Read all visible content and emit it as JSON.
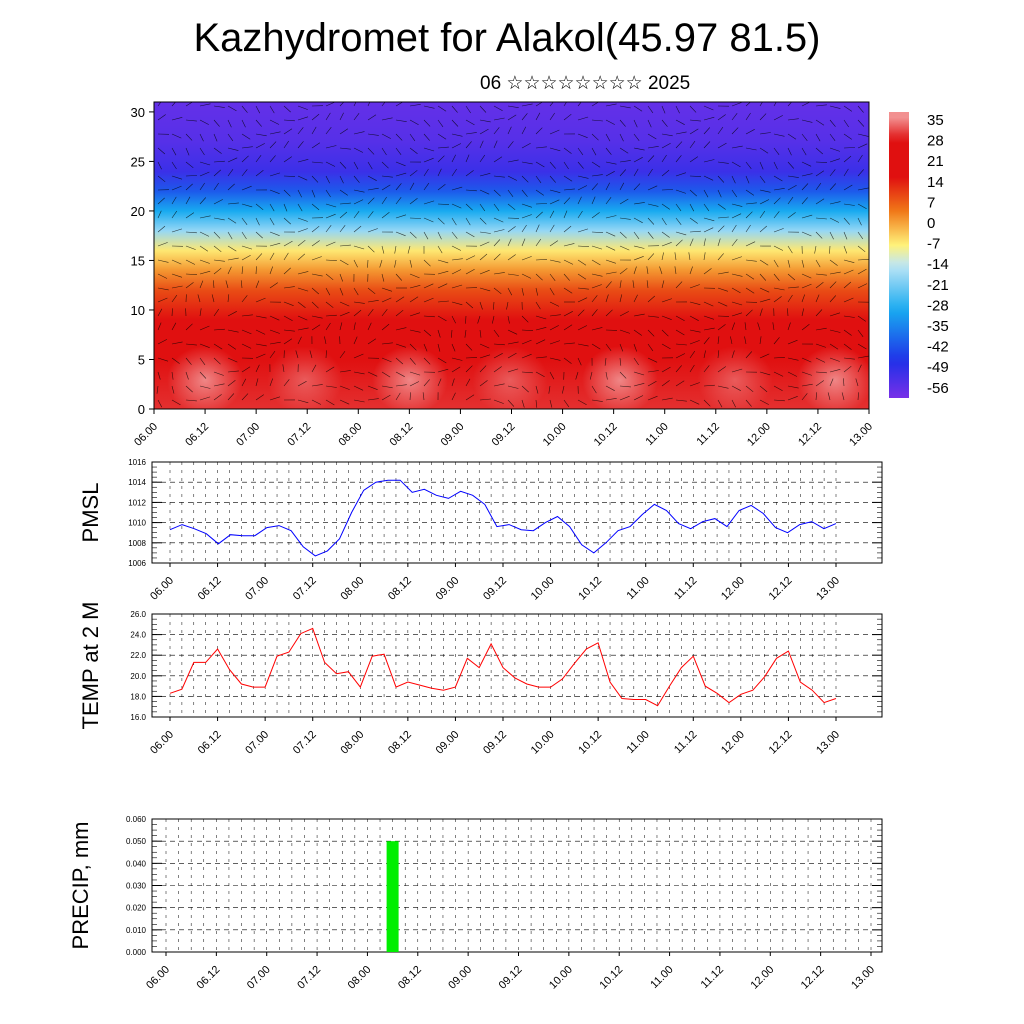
{
  "title": "Kazhydromet for Alakol(45.97 81.5)",
  "subtitle": "06 ☆☆☆☆☆☆☆☆ 2025",
  "chart_data": [
    {
      "type": "heatmap",
      "title": "",
      "xlabel": "",
      "ylabel": "",
      "description_fields_only": true,
      "x_tick_labels": [
        "06.00",
        "06.12",
        "07.00",
        "07.12",
        "08.00",
        "08.12",
        "09.00",
        "09.12",
        "10.00",
        "10.12",
        "11.00",
        "11.12",
        "12.00",
        "12.12",
        "13.00"
      ],
      "y_tick_labels": [
        "0",
        "5",
        "10",
        "15",
        "20",
        "25",
        "30"
      ],
      "ylim": [
        0,
        31
      ],
      "colorbar_labels": [
        "35",
        "28",
        "21",
        "14",
        "7",
        "0",
        "-7",
        "-14",
        "-21",
        "-28",
        "-35",
        "-42",
        "-49",
        "-56"
      ],
      "colorbar_range": [
        -63,
        38
      ],
      "colors": {
        "warm_max": "#f6b0b0",
        "warm": "#e01010",
        "orange": "#f07818",
        "yellow": "#fff27a",
        "cold_light": "#bfe6f6",
        "cyan": "#18aaf0",
        "blue": "#2030e8",
        "violet": "#7830e8"
      },
      "temperature_profile": [
        {
          "y": 0,
          "t": 30
        },
        {
          "y": 5,
          "t": 24
        },
        {
          "y": 9,
          "t": 18
        },
        {
          "y": 12,
          "t": 8
        },
        {
          "y": 14,
          "t": 0
        },
        {
          "y": 16,
          "t": -8
        },
        {
          "y": 18,
          "t": -20
        },
        {
          "y": 20,
          "t": -32
        },
        {
          "y": 22,
          "t": -44
        },
        {
          "y": 24,
          "t": -54
        },
        {
          "y": 27,
          "t": -58
        },
        {
          "y": 31,
          "t": -60
        }
      ],
      "grid": false,
      "wind_barbs": true
    },
    {
      "type": "line",
      "ylabel": "PMSL",
      "ylim": [
        1006,
        1016
      ],
      "y_ticks": [
        "1006",
        "1008",
        "1010",
        "1012",
        "1014",
        "1016"
      ],
      "x_tick_labels": [
        "06.00",
        "06.12",
        "07.00",
        "07.12",
        "08.00",
        "08.12",
        "09.00",
        "09.12",
        "10.00",
        "10.12",
        "11.00",
        "11.12",
        "12.00",
        "12.12",
        "13.00"
      ],
      "grid": true,
      "color": "#0000ff",
      "values": [
        1009.3,
        1009.8,
        1009.4,
        1008.9,
        1007.9,
        1008.8,
        1008.7,
        1008.7,
        1009.5,
        1009.7,
        1009.2,
        1007.6,
        1006.7,
        1007.2,
        1008.4,
        1011.0,
        1013.2,
        1014.0,
        1014.2,
        1014.2,
        1013.0,
        1013.3,
        1012.7,
        1012.4,
        1013.1,
        1012.7,
        1011.8,
        1009.6,
        1009.8,
        1009.3,
        1009.2,
        1010.0,
        1010.6,
        1009.6,
        1007.8,
        1007.0,
        1008.0,
        1009.2,
        1009.6,
        1010.8,
        1011.8,
        1011.2,
        1009.9,
        1009.4,
        1010.1,
        1010.4,
        1009.6,
        1011.2,
        1011.7,
        1010.9,
        1009.5,
        1009.0,
        1009.8,
        1010.1,
        1009.4,
        1009.9
      ]
    },
    {
      "type": "line",
      "ylabel": "TEMP at 2 M",
      "ylim": [
        16,
        26
      ],
      "y_ticks": [
        "16.0",
        "18.0",
        "20.0",
        "22.0",
        "24.0",
        "26.0"
      ],
      "x_tick_labels": [
        "06.00",
        "06.12",
        "07.00",
        "07.12",
        "08.00",
        "08.12",
        "09.00",
        "09.12",
        "10.00",
        "10.12",
        "11.00",
        "11.12",
        "12.00",
        "12.12",
        "13.00"
      ],
      "grid": true,
      "color": "#ff0000",
      "values": [
        18.3,
        18.7,
        21.3,
        21.3,
        22.6,
        20.6,
        19.2,
        18.9,
        18.9,
        21.9,
        22.3,
        24.1,
        24.6,
        21.3,
        20.2,
        20.4,
        18.9,
        21.9,
        22.1,
        18.9,
        19.4,
        19.1,
        18.8,
        18.6,
        18.9,
        21.7,
        20.8,
        23.1,
        20.8,
        19.8,
        19.2,
        18.9,
        18.9,
        19.7,
        21.2,
        22.6,
        23.2,
        19.4,
        17.8,
        17.7,
        17.7,
        17.1,
        19.0,
        20.8,
        21.9,
        19.0,
        18.3,
        17.4,
        18.2,
        18.6,
        19.9,
        21.7,
        22.4,
        19.4,
        18.6,
        17.4,
        17.8
      ]
    },
    {
      "type": "bar",
      "ylabel": "PRECIP, mm",
      "ylim": [
        0,
        0.06
      ],
      "y_ticks": [
        "0.000",
        "0.010",
        "0.020",
        "0.030",
        "0.040",
        "0.050",
        "0.060"
      ],
      "x_tick_labels": [
        "06.00",
        "06.12",
        "07.00",
        "07.12",
        "08.00",
        "08.12",
        "09.00",
        "09.12",
        "10.00",
        "10.12",
        "11.00",
        "11.12",
        "12.00",
        "12.12",
        "13.00"
      ],
      "grid": true,
      "color": "#00ee00",
      "bars": [
        {
          "x": "08.06",
          "value": 0.05
        }
      ]
    }
  ]
}
